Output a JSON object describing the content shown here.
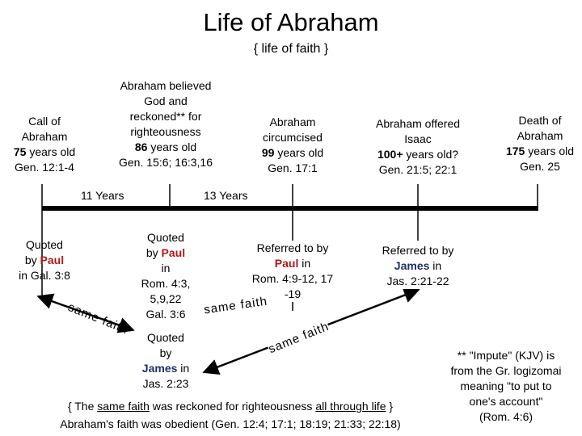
{
  "title": "Life of Abraham",
  "subtitle": "{ life of faith }",
  "events": [
    {
      "lines": [
        [
          "Call of"
        ],
        [
          "Abraham"
        ],
        [
          "75",
          "years old"
        ],
        [
          "Gen. 12:1-4"
        ]
      ]
    },
    {
      "lines": [
        [
          "Abraham believed"
        ],
        [
          "God and"
        ],
        [
          "reckoned** for"
        ],
        [
          "righteousness"
        ],
        [
          "86",
          "years old"
        ],
        [
          "Gen. 15:6; 16:3,16"
        ]
      ]
    },
    {
      "lines": [
        [
          "Abraham"
        ],
        [
          "circumcised"
        ],
        [
          "99",
          "years old"
        ],
        [
          "Gen. 17:1"
        ]
      ]
    },
    {
      "lines": [
        [
          "Abraham offered"
        ],
        [
          "Isaac"
        ],
        [
          "100+",
          "years old?"
        ],
        [
          "Gen. 21:5; 22:1"
        ]
      ]
    },
    {
      "lines": [
        [
          "Death of"
        ],
        [
          "Abraham"
        ],
        [
          "175",
          "years old"
        ],
        [
          "Gen. 25"
        ]
      ]
    }
  ],
  "intervals": [
    "11 Years",
    "13 Years"
  ],
  "quotes": [
    {
      "lines": [
        [
          "Quoted"
        ],
        [
          "by",
          "Paul"
        ],
        [
          "in Gal. 3:8"
        ]
      ]
    },
    {
      "lines": [
        [
          "Quoted"
        ],
        [
          "by",
          "Paul"
        ],
        [
          "in"
        ],
        [
          "Rom. 4:3,"
        ],
        [
          "5,9,22"
        ],
        [
          "Gal. 3:6"
        ]
      ]
    },
    {
      "lines": [
        [
          "Quoted"
        ],
        [
          "by"
        ],
        [
          "James",
          "in"
        ],
        [
          "Jas. 2:23"
        ]
      ]
    },
    {
      "lines": [
        [
          "Referred to by"
        ],
        [
          "Paul",
          "in"
        ],
        [
          "Rom. 4:9-12, 17"
        ],
        [
          "-19"
        ]
      ]
    },
    {
      "lines": [
        [
          "Referred to by"
        ],
        [
          "James",
          "in"
        ],
        [
          "Jas. 2:21-22"
        ]
      ]
    }
  ],
  "connectors": [
    "same faith",
    "same faith",
    "same faith"
  ],
  "summary": {
    "line1": [
      "{ The",
      "same faith",
      "was reckoned for righteousness",
      "all through life",
      "}"
    ],
    "line2": "Abraham's faith was obedient (Gen. 12:4; 17:1; 18:19; 21:33; 22:18)"
  },
  "footnote": [
    "** \"Impute\" (KJV) is",
    "from the Gr. logizomai",
    "meaning \"to put to",
    "one's account\"",
    "(Rom. 4:6)"
  ]
}
